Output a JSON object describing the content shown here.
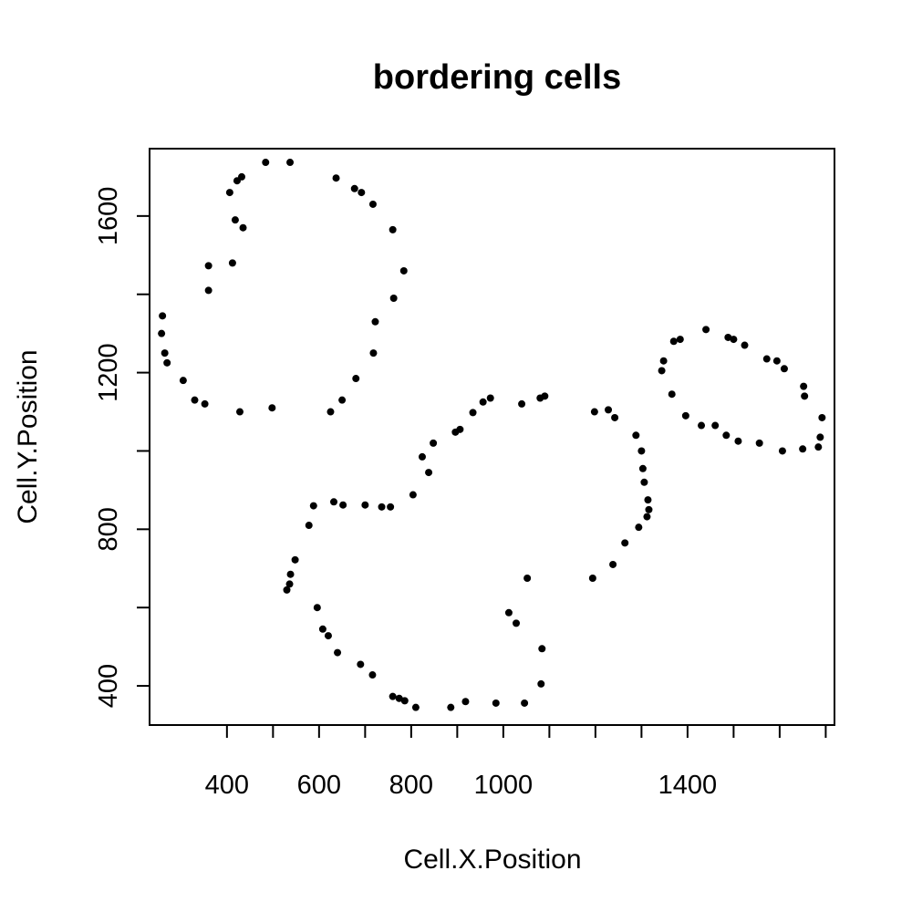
{
  "chart_data": {
    "type": "scatter",
    "title": "bordering cells",
    "xlabel": "Cell.X.Position",
    "ylabel": "Cell.Y.Position",
    "xlim": [
      232,
      1719
    ],
    "ylim": [
      300,
      1772
    ],
    "xticks": [
      400,
      600,
      800,
      1000,
      1400
    ],
    "xtick_labels": [
      "400",
      "600",
      "800",
      "1000",
      "1400"
    ],
    "yticks": [
      400,
      800,
      1200,
      1600
    ],
    "ytick_labels": [
      "400",
      "800",
      "1200",
      "1600"
    ],
    "grid": false,
    "legend": "none",
    "point_color": "#000000",
    "series": [
      {
        "points": [
          [
            258,
            1300
          ],
          [
            260,
            1345
          ],
          [
            265,
            1250
          ],
          [
            270,
            1225
          ],
          [
            305,
            1180
          ],
          [
            330,
            1130
          ],
          [
            352,
            1120
          ],
          [
            360,
            1473
          ],
          [
            360,
            1410
          ],
          [
            406,
            1660
          ],
          [
            412,
            1480
          ],
          [
            418,
            1590
          ],
          [
            422,
            1690
          ],
          [
            428,
            1100
          ],
          [
            432,
            1700
          ],
          [
            435,
            1570
          ],
          [
            484,
            1737
          ],
          [
            498,
            1110
          ],
          [
            537,
            1737
          ],
          [
            625,
            1100
          ],
          [
            637,
            1697
          ],
          [
            650,
            1130
          ],
          [
            677,
            1670
          ],
          [
            680,
            1185
          ],
          [
            692,
            1660
          ],
          [
            717,
            1630
          ],
          [
            718,
            1250
          ],
          [
            722,
            1330
          ],
          [
            760,
            1565
          ],
          [
            762,
            1390
          ],
          [
            784,
            1460
          ]
        ]
      },
      {
        "points": [
          [
            530,
            645
          ],
          [
            536,
            660
          ],
          [
            538,
            685
          ],
          [
            548,
            722
          ],
          [
            578,
            810
          ],
          [
            588,
            860
          ],
          [
            596,
            600
          ],
          [
            608,
            545
          ],
          [
            620,
            528
          ],
          [
            632,
            870
          ],
          [
            640,
            485
          ],
          [
            652,
            862
          ],
          [
            690,
            455
          ],
          [
            700,
            862
          ],
          [
            716,
            428
          ],
          [
            736,
            857
          ],
          [
            755,
            857
          ],
          [
            760,
            373
          ],
          [
            774,
            368
          ],
          [
            786,
            362
          ],
          [
            804,
            888
          ],
          [
            810,
            345
          ],
          [
            824,
            985
          ],
          [
            838,
            945
          ],
          [
            848,
            1020
          ],
          [
            886,
            345
          ],
          [
            896,
            1048
          ],
          [
            906,
            1055
          ],
          [
            918,
            360
          ],
          [
            934,
            1098
          ],
          [
            956,
            1125
          ],
          [
            972,
            1135
          ],
          [
            984,
            356
          ],
          [
            1012,
            587
          ],
          [
            1028,
            560
          ],
          [
            1040,
            1120
          ],
          [
            1046,
            356
          ],
          [
            1052,
            675
          ],
          [
            1080,
            1135
          ],
          [
            1082,
            405
          ],
          [
            1084,
            495
          ],
          [
            1090,
            1140
          ],
          [
            1194,
            675
          ],
          [
            1198,
            1100
          ],
          [
            1228,
            1105
          ],
          [
            1238,
            710
          ],
          [
            1242,
            1085
          ],
          [
            1264,
            765
          ],
          [
            1288,
            1040
          ],
          [
            1294,
            805
          ],
          [
            1300,
            1000
          ],
          [
            1303,
            955
          ],
          [
            1306,
            920
          ],
          [
            1312,
            832
          ],
          [
            1314,
            875
          ],
          [
            1316,
            850
          ]
        ]
      },
      {
        "points": [
          [
            1344,
            1205
          ],
          [
            1348,
            1230
          ],
          [
            1366,
            1145
          ],
          [
            1370,
            1280
          ],
          [
            1384,
            1285
          ],
          [
            1396,
            1090
          ],
          [
            1430,
            1065
          ],
          [
            1440,
            1310
          ],
          [
            1460,
            1065
          ],
          [
            1484,
            1040
          ],
          [
            1488,
            1290
          ],
          [
            1500,
            1285
          ],
          [
            1510,
            1025
          ],
          [
            1524,
            1270
          ],
          [
            1556,
            1020
          ],
          [
            1572,
            1235
          ],
          [
            1594,
            1230
          ],
          [
            1606,
            1000
          ],
          [
            1610,
            1210
          ],
          [
            1650,
            1005
          ],
          [
            1652,
            1165
          ],
          [
            1654,
            1140
          ],
          [
            1684,
            1010
          ],
          [
            1688,
            1035
          ],
          [
            1692,
            1085
          ]
        ]
      }
    ]
  }
}
